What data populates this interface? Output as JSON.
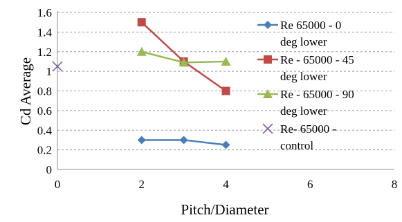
{
  "chart_data": {
    "type": "scatter",
    "title": "",
    "xlabel": "Pitch/Diameter",
    "ylabel": "Cd Average",
    "xlim": [
      0,
      8
    ],
    "ylim": [
      0,
      1.6
    ],
    "x_ticks": [
      "0",
      "2",
      "4",
      "6",
      "8"
    ],
    "y_ticks": [
      "0",
      "0.2",
      "0.4",
      "0.6",
      "0.8",
      "1",
      "1.2",
      "1.4",
      "1.6"
    ],
    "grid": "horizontal",
    "legend_position": "right",
    "series": [
      {
        "name": "Re 65000 - 0 deg lower",
        "legend_lines": [
          "Re 65000 - 0",
          "deg lower"
        ],
        "marker": "diamond",
        "color": "#4a7ebb",
        "lines": true,
        "points": [
          [
            2,
            0.3
          ],
          [
            3,
            0.3
          ],
          [
            4,
            0.25
          ]
        ]
      },
      {
        "name": "Re - 65000 - 45 deg lower",
        "legend_lines": [
          "Re - 65000 - 45",
          "deg lower"
        ],
        "marker": "square",
        "color": "#be4b48",
        "lines": true,
        "points": [
          [
            2,
            1.5
          ],
          [
            3,
            1.1
          ],
          [
            4,
            0.8
          ]
        ]
      },
      {
        "name": "Re - 65000 - 90 deg lower",
        "legend_lines": [
          "Re - 65000 - 90",
          "deg lower"
        ],
        "marker": "triangle",
        "color": "#98b954",
        "lines": true,
        "points": [
          [
            2,
            1.2
          ],
          [
            3,
            1.09
          ],
          [
            4,
            1.1
          ]
        ]
      },
      {
        "name": "Re- 65000 - control",
        "legend_lines": [
          "Re- 65000 -",
          "control"
        ],
        "marker": "x",
        "color": "#7d60a0",
        "lines": false,
        "points": [
          [
            0,
            1.05
          ]
        ]
      }
    ]
  }
}
